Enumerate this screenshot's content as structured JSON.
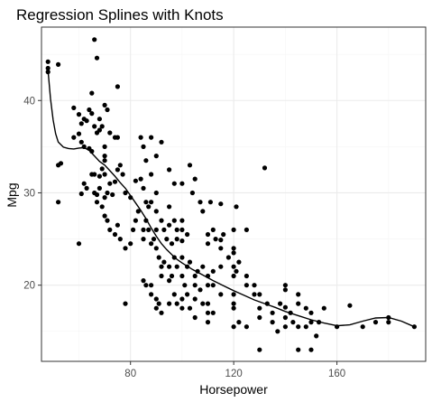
{
  "chart_data": {
    "type": "scatter",
    "title": "Regression Splines with Knots",
    "xlabel": "Horsepower",
    "ylabel": "Mpg",
    "xlim": [
      45.5,
      194.4
    ],
    "ylim": [
      11.75,
      47.95
    ],
    "x_ticks": [
      80,
      120,
      160
    ],
    "x_tick_labels": [
      "80",
      "120",
      "160"
    ],
    "y_ticks": [
      20,
      30,
      40
    ],
    "y_tick_labels": [
      "20",
      "30",
      "40"
    ],
    "grid": true,
    "legend": "none",
    "colors": {
      "points": "#000000",
      "line": "#000000",
      "grid_major": "#ebebeb",
      "grid_minor": "#f5f5f5",
      "panel_border": "#333333"
    },
    "points": [
      [
        48,
        44.2
      ],
      [
        48,
        43.5
      ],
      [
        48,
        43.1
      ],
      [
        52,
        43.9
      ],
      [
        52,
        33
      ],
      [
        53,
        33.2
      ],
      [
        52,
        29
      ],
      [
        58,
        39.2
      ],
      [
        60,
        38.5
      ],
      [
        61,
        37.5
      ],
      [
        62,
        38
      ],
      [
        63,
        37.8
      ],
      [
        64,
        39
      ],
      [
        65,
        38.6
      ],
      [
        65,
        40.8
      ],
      [
        66,
        46.6
      ],
      [
        67,
        44.6
      ],
      [
        68,
        38
      ],
      [
        70,
        39.5
      ],
      [
        71,
        39
      ],
      [
        75,
        41.5
      ],
      [
        58,
        36
      ],
      [
        60,
        36.4
      ],
      [
        61,
        35.5
      ],
      [
        62,
        35
      ],
      [
        64,
        34.8
      ],
      [
        65,
        34.5
      ],
      [
        66,
        37.2
      ],
      [
        67,
        36.5
      ],
      [
        68,
        36.8
      ],
      [
        69,
        37.2
      ],
      [
        70,
        35
      ],
      [
        70,
        34
      ],
      [
        70,
        33.5
      ],
      [
        72,
        36.5
      ],
      [
        74,
        36
      ],
      [
        75,
        36
      ],
      [
        70,
        32
      ],
      [
        68,
        31.8
      ],
      [
        69,
        32.6
      ],
      [
        66,
        32
      ],
      [
        62,
        31
      ],
      [
        63,
        30.5
      ],
      [
        65,
        32
      ],
      [
        66,
        30
      ],
      [
        67,
        29.8
      ],
      [
        67,
        29
      ],
      [
        68,
        30.5
      ],
      [
        69,
        28.5
      ],
      [
        70,
        29.5
      ],
      [
        71,
        30
      ],
      [
        72,
        31
      ],
      [
        73,
        29.8
      ],
      [
        74,
        31.2
      ],
      [
        75,
        32.5
      ],
      [
        76,
        33
      ],
      [
        77,
        32
      ],
      [
        78,
        30
      ],
      [
        80,
        29.5
      ],
      [
        82,
        31.3
      ],
      [
        84,
        31.5
      ],
      [
        60,
        24.5
      ],
      [
        61,
        29.9
      ],
      [
        70,
        27.5
      ],
      [
        71,
        27
      ],
      [
        72,
        26
      ],
      [
        74,
        25.5
      ],
      [
        75,
        26.5
      ],
      [
        76,
        25
      ],
      [
        78,
        24
      ],
      [
        80,
        24.5
      ],
      [
        81,
        26
      ],
      [
        82,
        27
      ],
      [
        83,
        28
      ],
      [
        85,
        26
      ],
      [
        85,
        25
      ],
      [
        86,
        27
      ],
      [
        87,
        26
      ],
      [
        88,
        24.5
      ],
      [
        89,
        25
      ],
      [
        90,
        26
      ],
      [
        90,
        24
      ],
      [
        91,
        23
      ],
      [
        92,
        22
      ],
      [
        92,
        21
      ],
      [
        93,
        22.5
      ],
      [
        95,
        22
      ],
      [
        95,
        20.5
      ],
      [
        96,
        21
      ],
      [
        97,
        23
      ],
      [
        98,
        22
      ],
      [
        100,
        23
      ],
      [
        100,
        21
      ],
      [
        102,
        22
      ],
      [
        103,
        22.5
      ],
      [
        105,
        21
      ],
      [
        105,
        20
      ],
      [
        106,
        21.5
      ],
      [
        107,
        19.5
      ],
      [
        108,
        22
      ],
      [
        110,
        21
      ],
      [
        110,
        20
      ],
      [
        110,
        18
      ],
      [
        110,
        17
      ],
      [
        112,
        20
      ],
      [
        112,
        21.5
      ],
      [
        115,
        19
      ],
      [
        115,
        22
      ],
      [
        78,
        18
      ],
      [
        85,
        20.5
      ],
      [
        86,
        20
      ],
      [
        88,
        20
      ],
      [
        88,
        19
      ],
      [
        90,
        18.5
      ],
      [
        90,
        17.5
      ],
      [
        91,
        18
      ],
      [
        92,
        17
      ],
      [
        95,
        18
      ],
      [
        97,
        19
      ],
      [
        98,
        18
      ],
      [
        100,
        17.5
      ],
      [
        100,
        18.5
      ],
      [
        101,
        20
      ],
      [
        102,
        19
      ],
      [
        103,
        17.5
      ],
      [
        105,
        18.5
      ],
      [
        105,
        16.5
      ],
      [
        108,
        18
      ],
      [
        110,
        16
      ],
      [
        112,
        17
      ],
      [
        85,
        35
      ],
      [
        86,
        33.5
      ],
      [
        88,
        32
      ],
      [
        88,
        29
      ],
      [
        90,
        30
      ],
      [
        90,
        34
      ],
      [
        85,
        30.5
      ],
      [
        86,
        29
      ],
      [
        87,
        28.5
      ],
      [
        84,
        36
      ],
      [
        88,
        36
      ],
      [
        92,
        35.5
      ],
      [
        90,
        28
      ],
      [
        92,
        27
      ],
      [
        93,
        26
      ],
      [
        95,
        28.5
      ],
      [
        97,
        27
      ],
      [
        100,
        27
      ],
      [
        100,
        26
      ],
      [
        98,
        26
      ],
      [
        96,
        24.5
      ],
      [
        94,
        25
      ],
      [
        95,
        26.5
      ],
      [
        98,
        25
      ],
      [
        100,
        24.8
      ],
      [
        102,
        25.5
      ],
      [
        103,
        33
      ],
      [
        104,
        30
      ],
      [
        105,
        31.5
      ],
      [
        107,
        29
      ],
      [
        108,
        28
      ],
      [
        110,
        24.5
      ],
      [
        110,
        25.5
      ],
      [
        112,
        26
      ],
      [
        113,
        25
      ],
      [
        115,
        24
      ],
      [
        115,
        24.9
      ],
      [
        116,
        25.5
      ],
      [
        118,
        23
      ],
      [
        120,
        24
      ],
      [
        120,
        23.5
      ],
      [
        120,
        22
      ],
      [
        120,
        21
      ],
      [
        121,
        21.5
      ],
      [
        122,
        22.5
      ],
      [
        125,
        20
      ],
      [
        125,
        21
      ],
      [
        128,
        19
      ],
      [
        128,
        20
      ],
      [
        130,
        19
      ],
      [
        130,
        17.5
      ],
      [
        130,
        16.5
      ],
      [
        132,
        32.7
      ],
      [
        133,
        18
      ],
      [
        135,
        17
      ],
      [
        135,
        16
      ],
      [
        137,
        15
      ],
      [
        138,
        18
      ],
      [
        140,
        17.6
      ],
      [
        140,
        16.5
      ],
      [
        140,
        20
      ],
      [
        140,
        19.5
      ],
      [
        142,
        17
      ],
      [
        143,
        16
      ],
      [
        145,
        18
      ],
      [
        145,
        15.5
      ],
      [
        145,
        19
      ],
      [
        148,
        15.5
      ],
      [
        148,
        17.5
      ],
      [
        150,
        16
      ],
      [
        150,
        17
      ],
      [
        152,
        14.5
      ],
      [
        155,
        17.5
      ],
      [
        120,
        19
      ],
      [
        120,
        18
      ],
      [
        122,
        16
      ],
      [
        125,
        26
      ],
      [
        120,
        26
      ],
      [
        121,
        28.5
      ],
      [
        111,
        29
      ],
      [
        100,
        31
      ],
      [
        97,
        31
      ],
      [
        95,
        32.5
      ],
      [
        115,
        28.8
      ],
      [
        120,
        17.5
      ],
      [
        120,
        15.5
      ],
      [
        125,
        15.5
      ],
      [
        130,
        13
      ],
      [
        140,
        15.5
      ],
      [
        145,
        13
      ],
      [
        150,
        13
      ],
      [
        153,
        16
      ],
      [
        160,
        15.5
      ],
      [
        165,
        17.8
      ],
      [
        170,
        15.5
      ],
      [
        175,
        16
      ],
      [
        180,
        16
      ],
      [
        180,
        16.5
      ],
      [
        190,
        15.5
      ]
    ],
    "spline": {
      "x": [
        48,
        49,
        50,
        51,
        52,
        54,
        56,
        58,
        60,
        62,
        64,
        66,
        68,
        70,
        72,
        74,
        76,
        78,
        80,
        82,
        84,
        86,
        88,
        90,
        92,
        94,
        96,
        98,
        100,
        104,
        108,
        112,
        116,
        120,
        124,
        128,
        132,
        136,
        140,
        145,
        150,
        155,
        160,
        165,
        170,
        175,
        180,
        185,
        190
      ],
      "y": [
        43.3,
        40.2,
        37.9,
        36.4,
        35.5,
        34.95,
        34.8,
        34.75,
        34.85,
        34.9,
        34.6,
        34,
        33.4,
        33,
        32.4,
        31.8,
        31.1,
        30.5,
        29.7,
        28.9,
        28.1,
        27.2,
        26.2,
        25.3,
        24.5,
        23.85,
        23.3,
        22.8,
        22.4,
        21.7,
        21.1,
        20.5,
        19.95,
        19.4,
        18.9,
        18.4,
        18,
        17.6,
        17.15,
        16.7,
        16.25,
        15.9,
        15.6,
        15.7,
        16.1,
        16.45,
        16.5,
        16.1,
        15.5
      ]
    }
  }
}
